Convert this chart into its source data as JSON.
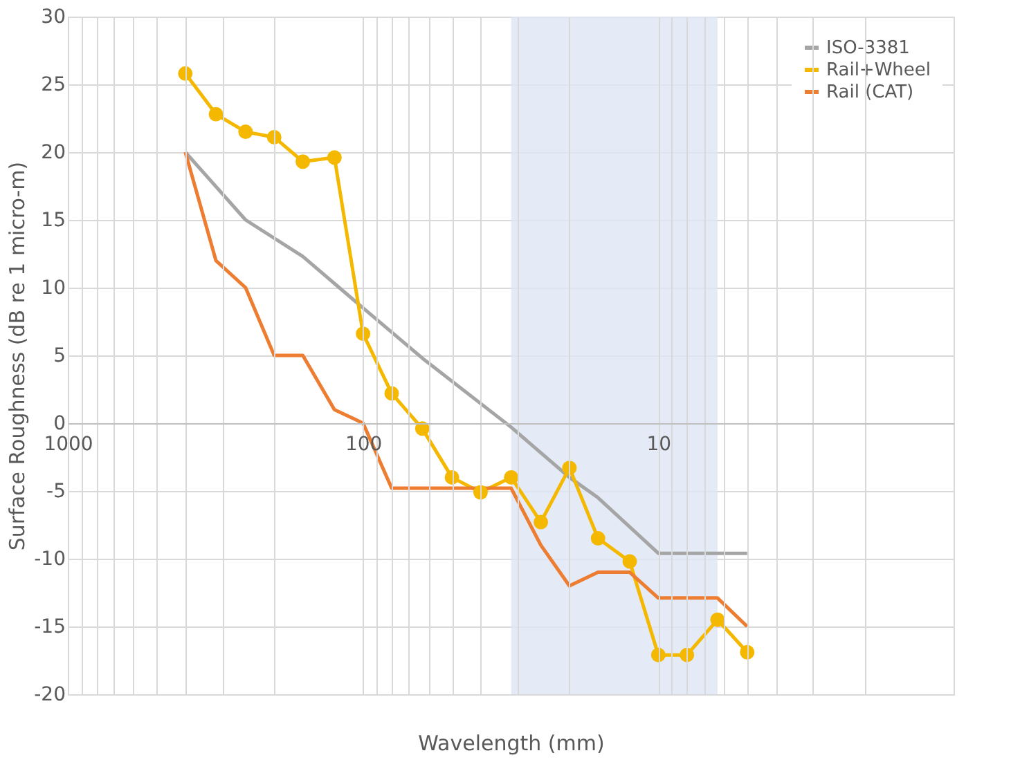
{
  "chart_data": {
    "type": "line",
    "xlabel": "Wavelength (mm)",
    "ylabel": "Surface Roughness (dB re 1 micro-m)",
    "log": "x",
    "xlim": [
      1000,
      1
    ],
    "ylim": [
      -20,
      30
    ],
    "xticks": [
      1000,
      {
        "value": 900,
        "label": null
      },
      {
        "value": 800,
        "label": null
      },
      {
        "value": 700,
        "label": null
      },
      {
        "value": 600,
        "label": null
      },
      {
        "value": 500,
        "label": null
      },
      {
        "value": 400,
        "label": null
      },
      {
        "value": 300,
        "label": null
      },
      {
        "value": 200,
        "label": null
      },
      100,
      {
        "value": 90,
        "label": null
      },
      {
        "value": 80,
        "label": null
      },
      {
        "value": 70,
        "label": null
      },
      {
        "value": 60,
        "label": null
      },
      {
        "value": 50,
        "label": null
      },
      {
        "value": 40,
        "label": null
      },
      {
        "value": 30,
        "label": null
      },
      {
        "value": 20,
        "label": null
      },
      10,
      {
        "value": 9,
        "label": null
      },
      {
        "value": 8,
        "label": null
      },
      {
        "value": 7,
        "label": null
      },
      {
        "value": 6,
        "label": null
      },
      {
        "value": 5,
        "label": null
      },
      {
        "value": 4,
        "label": null
      },
      {
        "value": 3,
        "label": null
      },
      {
        "value": 2,
        "label": null
      },
      {
        "value": 1,
        "label": null
      }
    ],
    "yticks": [
      -20,
      -15,
      -10,
      -5,
      0,
      5,
      10,
      15,
      20,
      25,
      30
    ],
    "grid": true,
    "legend": "top right",
    "bands": [
      {
        "axis": "x",
        "from": 31.5,
        "to": 6.3,
        "color": "#dde5f4"
      }
    ],
    "series": [
      {
        "name": "ISO-3381",
        "color": "#a5a5a5",
        "x": [
          400,
          250,
          160,
          100,
          63,
          31.5,
          20,
          16,
          10,
          8,
          6.3,
          5
        ],
        "values": [
          20,
          15,
          12.3,
          8.5,
          4.8,
          -0.3,
          -4,
          -5.5,
          -9.6,
          -9.6,
          -9.6,
          -9.6
        ]
      },
      {
        "name": "Rail+Wheel",
        "color": "#f5b800",
        "marker": "circle",
        "x": [
          400,
          315,
          250,
          200,
          160,
          125,
          100,
          80,
          63,
          50,
          40,
          31.5,
          25,
          20,
          16,
          12.5,
          10,
          8,
          6.3,
          5
        ],
        "values": [
          25.8,
          22.8,
          21.5,
          21.1,
          19.3,
          19.6,
          6.6,
          2.2,
          -0.4,
          -4,
          -5.1,
          -4,
          -7.3,
          -3.3,
          -8.5,
          -10.2,
          -17.1,
          -17.1,
          -14.5,
          -16.9
        ]
      },
      {
        "name": "Rail (CAT)",
        "color": "#ed7d31",
        "x": [
          400,
          315,
          250,
          200,
          160,
          125,
          100,
          80,
          63,
          50,
          40,
          31.5,
          25,
          20,
          16,
          12.5,
          10,
          8,
          6.3,
          5
        ],
        "values": [
          20,
          12,
          10,
          5,
          5,
          1,
          0,
          -4.8,
          -4.8,
          -4.8,
          -4.8,
          -4.8,
          -9,
          -12,
          -11,
          -11,
          -12.9,
          -12.9,
          -12.9,
          -15
        ]
      }
    ]
  }
}
